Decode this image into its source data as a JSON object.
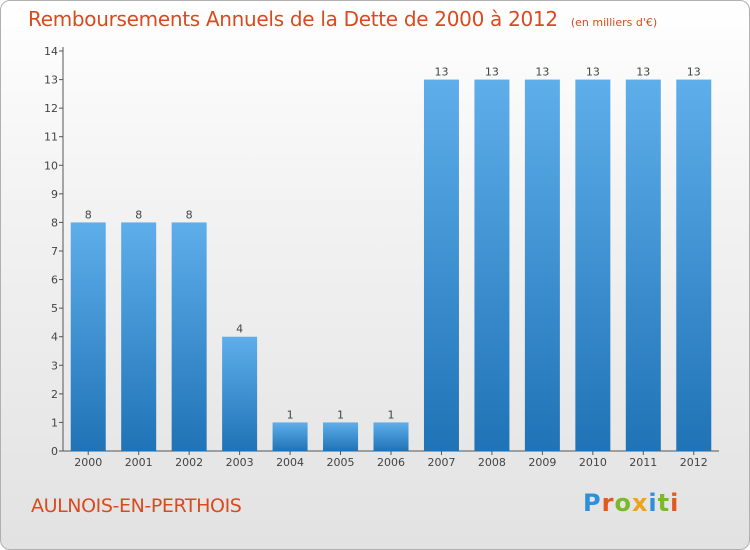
{
  "header": {
    "title": "Remboursements Annuels de la Dette de 2000 à 2012",
    "subtitle": "(en milliers d'€)"
  },
  "footer": {
    "commune": "AULNOIS-EN-PERTHOIS",
    "logo": "Proxiti"
  },
  "colors": {
    "accent": "#d94a1e",
    "bar_light": "#5eaeea",
    "bar_dark": "#1f73b6",
    "logo_letters": [
      "#2f8fd8",
      "#e4571f",
      "#7bb928",
      "#f0a21c",
      "#2f8fd8",
      "#7bb928",
      "#e4571f"
    ]
  },
  "chart_data": {
    "type": "bar",
    "title": "Remboursements Annuels de la Dette de 2000 à 2012",
    "subtitle": "(en milliers d'€)",
    "categories": [
      "2000",
      "2001",
      "2002",
      "2003",
      "2004",
      "2005",
      "2006",
      "2007",
      "2008",
      "2009",
      "2010",
      "2011",
      "2012"
    ],
    "values": [
      8,
      8,
      8,
      4,
      1,
      1,
      1,
      13,
      13,
      13,
      13,
      13,
      13
    ],
    "data_labels": [
      "8",
      "8",
      "8",
      "4",
      "1",
      "1",
      "1",
      "13",
      "13",
      "13",
      "13",
      "13",
      "13"
    ],
    "yticks": [
      "0",
      "1",
      "2",
      "3",
      "4",
      "5",
      "6",
      "7",
      "8",
      "9",
      "10",
      "11",
      "12",
      "13",
      "14"
    ],
    "ylim": [
      0,
      14
    ],
    "xlabel": "",
    "ylabel": "",
    "grid": false,
    "legend": "none"
  }
}
